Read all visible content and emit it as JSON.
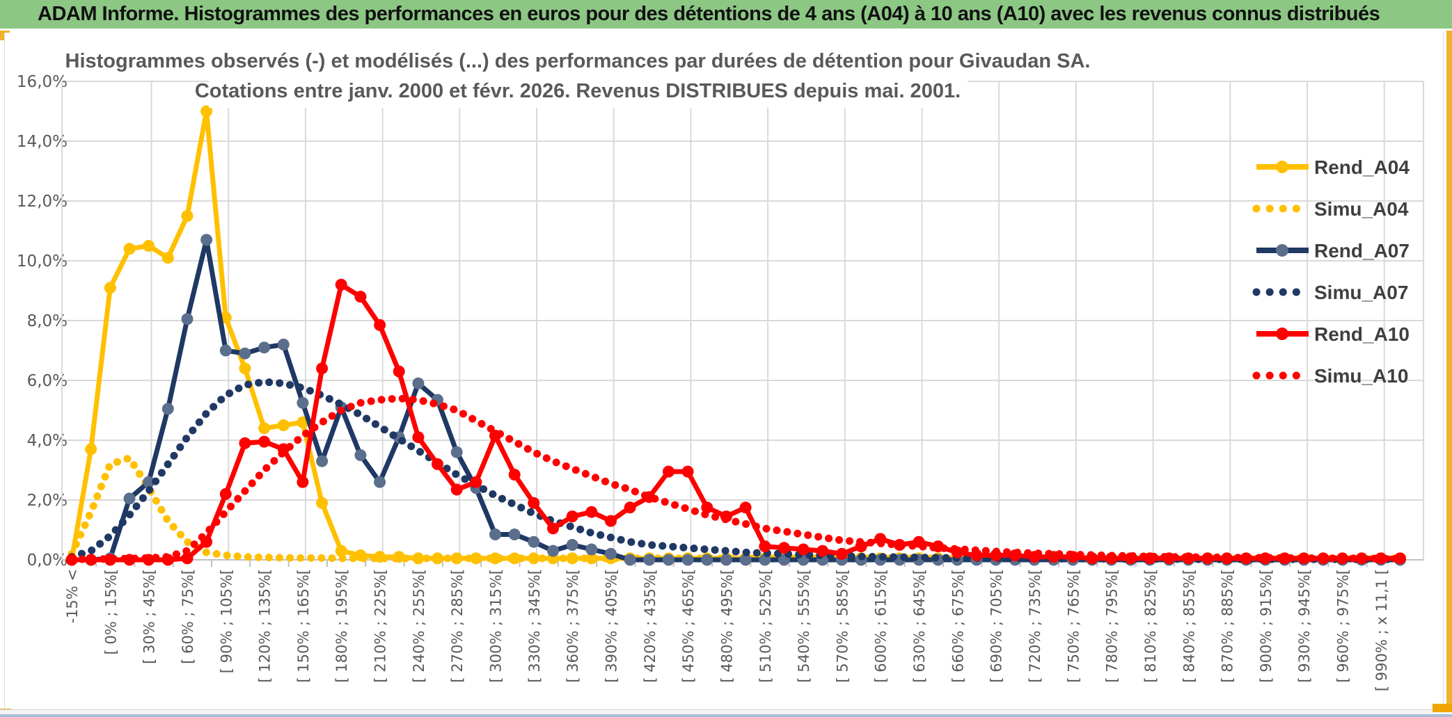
{
  "header": {
    "title": "ADAM Informe. Histogrammes des performances en euros pour des détentions de 4 ans (A04) à 10 ans (A10) avec les revenus connus distribués"
  },
  "chart_data": {
    "type": "line",
    "title_line1": "Histogrammes observés (-) et modélisés (...) des performances par durées de détention pour Givaudan SA.",
    "title_line2": "Cotations entre janv. 2000 et févr. 2026. Revenus DISTRIBUES depuis mai. 2001.",
    "ylabel": "",
    "xlabel": "",
    "ylim": [
      0,
      16
    ],
    "grid": true,
    "legend_position": "right-upper",
    "y_ticks": [
      "0,0%",
      "2,0%",
      "4,0%",
      "6,0%",
      "8,0%",
      "10,0%",
      "12,0%",
      "14,0%",
      "16,0%"
    ],
    "x_labels": [
      "-15% <",
      "[ 0% ; 15%[",
      "[ 30% ; 45%[",
      "[ 60% ; 75%[",
      "[ 90% ; 105%[",
      "[ 120% ; 135%[",
      "[ 150% ; 165%[",
      "[ 180% ; 195%[",
      "[ 210% ; 225%[",
      "[ 240% ; 255%[",
      "[ 270% ; 285%[",
      "[ 300% ; 315%[",
      "[ 330% ; 345%[",
      "[ 360% ; 375%[",
      "[ 390% ; 405%[",
      "[ 420% ; 435%[",
      "[ 450% ; 465%[",
      "[ 480% ; 495%[",
      "[ 510% ; 525%[",
      "[ 540% ; 555%[",
      "[ 570% ; 585%[",
      "[ 600% ; 615%[",
      "[ 630% ; 645%[",
      "[ 660% ; 675%[",
      "[ 690% ; 705%[",
      "[ 720% ; 735%[",
      "[ 750% ; 765%[",
      "[ 780% ; 795%[",
      "[ 810% ; 825%[",
      "[ 840% ; 855%[",
      "[ 870% ; 885%[",
      "[ 900% ; 915%[",
      "[ 930% ; 945%[",
      "[ 960% ; 975%[",
      "[ 990% ; x 11,1 ["
    ],
    "x_labels_every_n_bins": 2,
    "n_bins": 70,
    "series": [
      {
        "name": "Rend_A04",
        "color": "#FFC000",
        "marker_color": "#FFC000",
        "style": "solid",
        "marker": true,
        "values": [
          0,
          3.7,
          9.1,
          10.4,
          10.5,
          10.1,
          11.5,
          15,
          8.1,
          6.4,
          4.4,
          4.5,
          4.6,
          1.9,
          0.3,
          0.15,
          0.1,
          0.1,
          0.05,
          0.05,
          0.05,
          0.05,
          0.05,
          0.05,
          0.05,
          0.05,
          0.05,
          0.05,
          0.05,
          0.05,
          0.05,
          0.05,
          0.05,
          0.05,
          0.05,
          0.05,
          0.05,
          0.05,
          0.05,
          0.05,
          0.05,
          0.05,
          0.05,
          0.05,
          0.05,
          0.05,
          0.05,
          0.05,
          0.05,
          0.05,
          0.05,
          0.05,
          0.05,
          0.05,
          0.05,
          0.05,
          0.05,
          0.05,
          0.05,
          0.05,
          0.05,
          0.05,
          0.05,
          0.05,
          0.05,
          0.05,
          0.05,
          0.05,
          0.05,
          0.05
        ]
      },
      {
        "name": "Simu_A04",
        "color": "#FFC000",
        "style": "dotted",
        "marker": false,
        "values": [
          0.2,
          1.6,
          3.2,
          3.4,
          2.4,
          1.3,
          0.6,
          0.25,
          0.15,
          0.1,
          0.08,
          0.07,
          0.06,
          0.06,
          0.05,
          0.05,
          0.05,
          0.05,
          0.05,
          0.05,
          0.05,
          0.05,
          0.05,
          0.05,
          0.05,
          0.05,
          0.05,
          0.05,
          0.05,
          0.05,
          0.05,
          0.05,
          0.05,
          0.05,
          0.05,
          0.05,
          0.05,
          0.05,
          0.05,
          0.05,
          0.05,
          0.05,
          0.05,
          0.05,
          0.05,
          0.05,
          0.05,
          0.05,
          0.05,
          0.05,
          0.05,
          0.05,
          0.05,
          0.05,
          0.05,
          0.05,
          0.05,
          0.05,
          0.05,
          0.05,
          0.05,
          0.05,
          0.05,
          0.05,
          0.05,
          0.05,
          0.05,
          0.05,
          0.05,
          0.05
        ]
      },
      {
        "name": "Rend_A07",
        "color": "#1F3864",
        "marker_color": "#5B6E8C",
        "style": "solid",
        "marker": true,
        "values": [
          0,
          0,
          0.05,
          2.05,
          2.6,
          5.05,
          8.05,
          10.7,
          7,
          6.9,
          7.1,
          7.2,
          5.25,
          3.3,
          5.1,
          3.5,
          2.6,
          4.1,
          5.9,
          5.35,
          3.6,
          2.4,
          0.85,
          0.85,
          0.6,
          0.3,
          0.5,
          0.35,
          0.2,
          0,
          0,
          0,
          0,
          0,
          0,
          0,
          0,
          0,
          0,
          0,
          0,
          0,
          0,
          0,
          0,
          0,
          0,
          0,
          0,
          0,
          0,
          0,
          0,
          0,
          0,
          0,
          0,
          0,
          0,
          0,
          0,
          0,
          0,
          0,
          0,
          0,
          0,
          0,
          0,
          0
        ]
      },
      {
        "name": "Simu_A07",
        "color": "#1F3864",
        "style": "dotted",
        "marker": false,
        "values": [
          0.1,
          0.3,
          0.8,
          1.5,
          2.3,
          3.2,
          4.1,
          4.9,
          5.5,
          5.85,
          5.95,
          5.9,
          5.75,
          5.5,
          5.2,
          4.85,
          4.45,
          4.05,
          3.65,
          3.25,
          2.85,
          2.5,
          2.15,
          1.85,
          1.55,
          1.3,
          1.1,
          0.9,
          0.75,
          0.6,
          0.5,
          0.45,
          0.4,
          0.35,
          0.3,
          0.25,
          0.22,
          0.2,
          0.17,
          0.15,
          0.13,
          0.11,
          0.1,
          0.09,
          0.08,
          0.07,
          0.06,
          0.06,
          0.05,
          0.05,
          0.05,
          0.04,
          0.04,
          0.04,
          0.03,
          0.03,
          0.03,
          0.03,
          0.02,
          0.02,
          0.02,
          0.02,
          0.02,
          0.02,
          0.02,
          0.02,
          0.02,
          0.02,
          0.02,
          0.02
        ]
      },
      {
        "name": "Rend_A10",
        "color": "#FF0000",
        "marker_color": "#FF0000",
        "style": "solid",
        "marker": true,
        "values": [
          0,
          0,
          0,
          0,
          0,
          0,
          0.05,
          0.6,
          2.2,
          3.9,
          3.95,
          3.7,
          2.6,
          6.4,
          9.2,
          8.8,
          7.85,
          6.3,
          4.1,
          3.2,
          2.35,
          2.6,
          4.15,
          2.85,
          1.9,
          1.05,
          1.45,
          1.6,
          1.3,
          1.75,
          2.1,
          2.95,
          2.95,
          1.75,
          1.45,
          1.75,
          0.45,
          0.4,
          0.35,
          0.3,
          0.2,
          0.45,
          0.7,
          0.5,
          0.6,
          0.45,
          0.25,
          0.15,
          0.15,
          0.15,
          0.1,
          0.1,
          0.1,
          0.05,
          0.05,
          0.05,
          0.05,
          0.05,
          0.05,
          0.05,
          0.05,
          0.05,
          0.05,
          0.05,
          0.05,
          0.05,
          0.05,
          0.05,
          0.05,
          0.05
        ]
      },
      {
        "name": "Simu_A10",
        "color": "#FF0000",
        "style": "dotted",
        "marker": false,
        "values": [
          0.02,
          0.02,
          0.03,
          0.04,
          0.06,
          0.1,
          0.3,
          0.9,
          1.6,
          2.3,
          3.0,
          3.6,
          4.15,
          4.6,
          5.0,
          5.25,
          5.35,
          5.4,
          5.35,
          5.2,
          5.0,
          4.65,
          4.3,
          3.95,
          3.6,
          3.3,
          3.05,
          2.8,
          2.55,
          2.35,
          2.1,
          1.9,
          1.7,
          1.5,
          1.35,
          1.2,
          1.05,
          0.95,
          0.85,
          0.75,
          0.65,
          0.6,
          0.55,
          0.5,
          0.45,
          0.4,
          0.36,
          0.32,
          0.28,
          0.25,
          0.22,
          0.2,
          0.18,
          0.16,
          0.14,
          0.13,
          0.11,
          0.1,
          0.09,
          0.09,
          0.08,
          0.07,
          0.07,
          0.06,
          0.06,
          0.05,
          0.05,
          0.05,
          0.04,
          0.04
        ]
      }
    ]
  },
  "colors": {
    "header_bg": "#8CC784",
    "gold_frame": "#EFB229",
    "grid": "#D9D9D9",
    "axis_text": "#595959",
    "title_text": "#595959",
    "legend_text": "#3F3F3F",
    "bottom_edge": "#A9BED6"
  }
}
